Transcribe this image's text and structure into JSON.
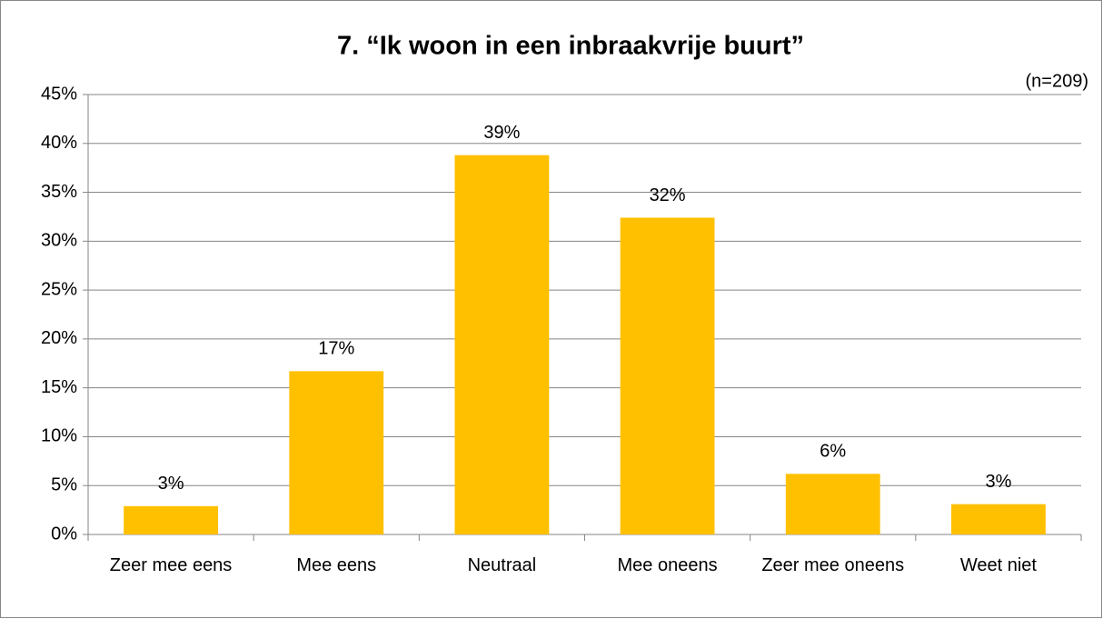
{
  "chart_data": {
    "type": "bar",
    "title": "7.  “Ik woon in een inbraakvrije buurt”",
    "subtitle": "(n=209)",
    "categories": [
      "Zeer mee eens",
      "Mee eens",
      "Neutraal",
      "Mee oneens",
      "Zeer mee oneens",
      "Weet niet"
    ],
    "values": [
      2.9,
      16.7,
      38.8,
      32.4,
      6.2,
      3.1
    ],
    "value_labels": [
      "3%",
      "17%",
      "39%",
      "32%",
      "6%",
      "3%"
    ],
    "color": "#ffc000",
    "ylim": [
      0,
      45
    ],
    "yticks": [
      {
        "value": 0,
        "label": "0%"
      },
      {
        "value": 5,
        "label": "5%"
      },
      {
        "value": 10,
        "label": "10%"
      },
      {
        "value": 15,
        "label": "15%"
      },
      {
        "value": 20,
        "label": "20%"
      },
      {
        "value": 25,
        "label": "25%"
      },
      {
        "value": 30,
        "label": "30%"
      },
      {
        "value": 35,
        "label": "35%"
      },
      {
        "value": 40,
        "label": "40%"
      },
      {
        "value": 45,
        "label": "45%"
      }
    ],
    "grid": true
  }
}
